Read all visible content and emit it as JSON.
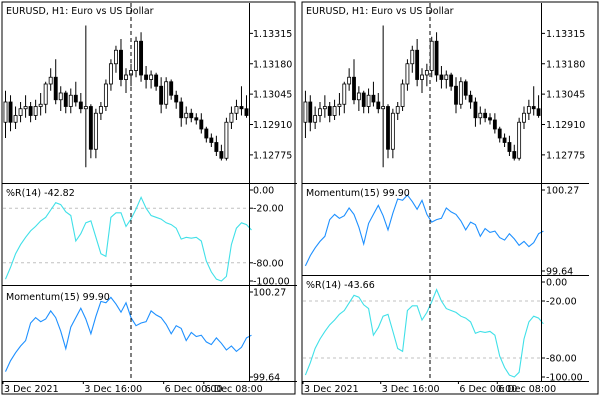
{
  "colors": {
    "background": "#ffffff",
    "frame": "#000000",
    "grid": "#c0c0c0",
    "crosshair": "#000000",
    "wpr_line": "#40e0e8",
    "momentum_line": "#1e90ff",
    "bull_fill": "#ffffff",
    "bear_fill": "#000000"
  },
  "left_chart": {
    "title": "EURUSD, H1:  Euro vs US Dollar",
    "price_ticks": [
      "1.13315",
      "1.13180",
      "1.13045",
      "1.12910",
      "1.12775"
    ],
    "x_ticks": [
      "3 Dec 2021",
      "3 Dec 16:00",
      "6 Dec 00:00",
      "6 Dec 08:00"
    ],
    "wpr_label": "%R(14) -42.82",
    "wpr_ticks": [
      "0.00",
      "-20.00",
      "-80.00",
      "-100.00"
    ],
    "momentum_label": "Momentum(15) 99.90",
    "momentum_ticks": [
      "100.27",
      "99.64"
    ]
  },
  "right_chart": {
    "title": "EURUSD, H1:  Euro vs US Dollar",
    "price_ticks": [
      "1.13315",
      "1.13180",
      "1.13045",
      "1.12910",
      "1.12775"
    ],
    "x_ticks": [
      "3 Dec 2021",
      "3 Dec 16:00",
      "6 Dec 00:00",
      "6 Dec 08:00"
    ],
    "momentum_label": "Momentum(15) 99.90",
    "momentum_ticks": [
      "100.27",
      "99.64"
    ],
    "wpr_label": "%R(14) -43.66",
    "wpr_ticks": [
      "0.00",
      "-20.00",
      "-80.00",
      "-100.00"
    ]
  },
  "chart_data": {
    "type": "candlestick",
    "symbol": "EURUSD",
    "timeframe": "H1",
    "price_range": [
      1.1265,
      1.1345
    ],
    "crosshair_bar": 32,
    "candles": [
      {
        "o": 1.1292,
        "h": 1.1306,
        "l": 1.1285,
        "c": 1.1301
      },
      {
        "o": 1.1301,
        "h": 1.1304,
        "l": 1.1288,
        "c": 1.1292
      },
      {
        "o": 1.1292,
        "h": 1.1299,
        "l": 1.1289,
        "c": 1.1295
      },
      {
        "o": 1.1295,
        "h": 1.1301,
        "l": 1.1292,
        "c": 1.1298
      },
      {
        "o": 1.1298,
        "h": 1.1304,
        "l": 1.1294,
        "c": 1.1299
      },
      {
        "o": 1.1299,
        "h": 1.1301,
        "l": 1.1292,
        "c": 1.1295
      },
      {
        "o": 1.1295,
        "h": 1.1302,
        "l": 1.1293,
        "c": 1.1299
      },
      {
        "o": 1.1299,
        "h": 1.1305,
        "l": 1.1295,
        "c": 1.13
      },
      {
        "o": 1.13,
        "h": 1.131,
        "l": 1.1296,
        "c": 1.1309
      },
      {
        "o": 1.1309,
        "h": 1.1316,
        "l": 1.1306,
        "c": 1.1312
      },
      {
        "o": 1.1312,
        "h": 1.132,
        "l": 1.13,
        "c": 1.1302
      },
      {
        "o": 1.1302,
        "h": 1.1308,
        "l": 1.1297,
        "c": 1.1305
      },
      {
        "o": 1.1305,
        "h": 1.1306,
        "l": 1.1296,
        "c": 1.1299
      },
      {
        "o": 1.1299,
        "h": 1.1307,
        "l": 1.1296,
        "c": 1.1304
      },
      {
        "o": 1.1304,
        "h": 1.131,
        "l": 1.1299,
        "c": 1.1301
      },
      {
        "o": 1.1301,
        "h": 1.1305,
        "l": 1.1296,
        "c": 1.1298
      },
      {
        "o": 1.1298,
        "h": 1.1335,
        "l": 1.1272,
        "c": 1.1299
      },
      {
        "o": 1.1299,
        "h": 1.13,
        "l": 1.1276,
        "c": 1.128
      },
      {
        "o": 1.128,
        "h": 1.1298,
        "l": 1.1276,
        "c": 1.1296
      },
      {
        "o": 1.1296,
        "h": 1.1301,
        "l": 1.1293,
        "c": 1.1299
      },
      {
        "o": 1.1299,
        "h": 1.1311,
        "l": 1.1297,
        "c": 1.1309
      },
      {
        "o": 1.1309,
        "h": 1.132,
        "l": 1.1306,
        "c": 1.1318
      },
      {
        "o": 1.1318,
        "h": 1.1326,
        "l": 1.1314,
        "c": 1.1324
      },
      {
        "o": 1.1324,
        "h": 1.1329,
        "l": 1.1308,
        "c": 1.1311
      },
      {
        "o": 1.1311,
        "h": 1.1316,
        "l": 1.1305,
        "c": 1.1313
      },
      {
        "o": 1.1313,
        "h": 1.1318,
        "l": 1.1308,
        "c": 1.1315
      },
      {
        "o": 1.1315,
        "h": 1.133,
        "l": 1.1312,
        "c": 1.1328
      },
      {
        "o": 1.1328,
        "h": 1.1332,
        "l": 1.131,
        "c": 1.1313
      },
      {
        "o": 1.1313,
        "h": 1.1317,
        "l": 1.1307,
        "c": 1.1311
      },
      {
        "o": 1.1311,
        "h": 1.1315,
        "l": 1.1307,
        "c": 1.1313
      },
      {
        "o": 1.1313,
        "h": 1.1314,
        "l": 1.1306,
        "c": 1.1308
      },
      {
        "o": 1.1308,
        "h": 1.1312,
        "l": 1.1296,
        "c": 1.13
      },
      {
        "o": 1.13,
        "h": 1.1312,
        "l": 1.1298,
        "c": 1.131
      },
      {
        "o": 1.131,
        "h": 1.1311,
        "l": 1.1302,
        "c": 1.1304
      },
      {
        "o": 1.1304,
        "h": 1.1306,
        "l": 1.1298,
        "c": 1.1301
      },
      {
        "o": 1.1301,
        "h": 1.1303,
        "l": 1.129,
        "c": 1.1294
      },
      {
        "o": 1.1294,
        "h": 1.1299,
        "l": 1.1291,
        "c": 1.1296
      },
      {
        "o": 1.1296,
        "h": 1.1298,
        "l": 1.1292,
        "c": 1.1294
      },
      {
        "o": 1.1294,
        "h": 1.1296,
        "l": 1.1291,
        "c": 1.1293
      },
      {
        "o": 1.1293,
        "h": 1.1296,
        "l": 1.1287,
        "c": 1.1289
      },
      {
        "o": 1.1289,
        "h": 1.129,
        "l": 1.1283,
        "c": 1.1285
      },
      {
        "o": 1.1285,
        "h": 1.1287,
        "l": 1.1281,
        "c": 1.1283
      },
      {
        "o": 1.1283,
        "h": 1.1286,
        "l": 1.1277,
        "c": 1.1279
      },
      {
        "o": 1.1279,
        "h": 1.1282,
        "l": 1.1275,
        "c": 1.1276
      },
      {
        "o": 1.1276,
        "h": 1.1294,
        "l": 1.1275,
        "c": 1.1292
      },
      {
        "o": 1.1292,
        "h": 1.1299,
        "l": 1.1289,
        "c": 1.1296
      },
      {
        "o": 1.1296,
        "h": 1.1302,
        "l": 1.1293,
        "c": 1.1299
      },
      {
        "o": 1.1299,
        "h": 1.1308,
        "l": 1.1295,
        "c": 1.1298
      },
      {
        "o": 1.1298,
        "h": 1.1304,
        "l": 1.1294,
        "c": 1.1295
      }
    ],
    "wpr": {
      "name": "%R(14)",
      "range": [
        -100,
        0
      ],
      "levels": [
        -20,
        -80
      ],
      "values": [
        -98,
        -85,
        -70,
        -60,
        -52,
        -45,
        -40,
        -34,
        -30,
        -22,
        -14,
        -16,
        -24,
        -28,
        -56,
        -48,
        -36,
        -34,
        -52,
        -70,
        -73,
        -30,
        -25,
        -25,
        -40,
        -32,
        -21,
        -8,
        -20,
        -28,
        -30,
        -32,
        -36,
        -38,
        -42,
        -54,
        -52,
        -53,
        -52,
        -56,
        -78,
        -90,
        -98,
        -100,
        -95,
        -60,
        -42,
        -36,
        -38,
        -44
      ]
    },
    "momentum": {
      "name": "Momentum(15)",
      "range": [
        99.64,
        100.27
      ],
      "values": [
        99.68,
        99.76,
        99.82,
        99.87,
        99.91,
        100.04,
        100.08,
        100.05,
        100.07,
        100.13,
        100.08,
        99.98,
        99.85,
        100.01,
        100.08,
        100.15,
        100.07,
        99.96,
        100.09,
        100.2,
        100.19,
        100.23,
        100.18,
        100.12,
        100.19,
        100.08,
        100.02,
        100.04,
        100.05,
        100.13,
        100.1,
        100.08,
        100.03,
        99.96,
        100.02,
        100.0,
        99.91,
        99.97,
        99.94,
        99.95,
        99.9,
        99.88,
        99.93,
        99.89,
        99.84,
        99.87,
        99.83,
        99.86,
        99.93,
        99.95
      ]
    }
  }
}
